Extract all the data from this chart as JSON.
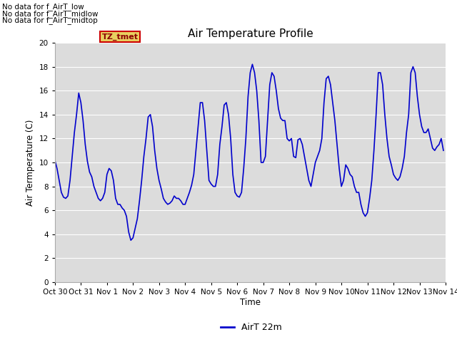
{
  "title": "Air Temperature Profile",
  "ylabel": "Air Termperature (C)",
  "xlabel": "Time",
  "legend_label": "AirT 22m",
  "line_color": "#0000cc",
  "plot_bg_color": "#dcdcdc",
  "fig_bg_color": "#ffffff",
  "ylim": [
    0,
    20
  ],
  "yticks": [
    0,
    2,
    4,
    6,
    8,
    10,
    12,
    14,
    16,
    18,
    20
  ],
  "no_data_texts": [
    "No data for f_AirT_low",
    "No data for f_AirT_midlow",
    "No data for f_AirT_midtop"
  ],
  "tz_label": "TZ_tmet",
  "x_start_day": 0,
  "x_end_day": 15.0,
  "xtick_labels": [
    "Oct 30",
    "Oct 31",
    "Nov 1",
    "Nov 2",
    "Nov 3",
    "Nov 4",
    "Nov 5",
    "Nov 6",
    "Nov 7",
    "Nov 8",
    "Nov 9",
    "Nov 10",
    "Nov 11",
    "Nov 12",
    "Nov 13",
    "Nov 14"
  ],
  "xtick_positions": [
    0,
    1,
    2,
    3,
    4,
    5,
    6,
    7,
    8,
    9,
    10,
    11,
    12,
    13,
    14,
    15
  ],
  "data_x": [
    0.0,
    0.083,
    0.167,
    0.25,
    0.333,
    0.417,
    0.5,
    0.583,
    0.667,
    0.75,
    0.833,
    0.917,
    1.0,
    1.083,
    1.167,
    1.25,
    1.333,
    1.417,
    1.5,
    1.583,
    1.667,
    1.75,
    1.833,
    1.917,
    2.0,
    2.083,
    2.167,
    2.25,
    2.333,
    2.417,
    2.5,
    2.583,
    2.667,
    2.75,
    2.833,
    2.917,
    3.0,
    3.083,
    3.167,
    3.25,
    3.333,
    3.417,
    3.5,
    3.583,
    3.667,
    3.75,
    3.833,
    3.917,
    4.0,
    4.083,
    4.167,
    4.25,
    4.333,
    4.417,
    4.5,
    4.583,
    4.667,
    4.75,
    4.833,
    4.917,
    5.0,
    5.083,
    5.167,
    5.25,
    5.333,
    5.417,
    5.5,
    5.583,
    5.667,
    5.75,
    5.833,
    5.917,
    6.0,
    6.083,
    6.167,
    6.25,
    6.333,
    6.417,
    6.5,
    6.583,
    6.667,
    6.75,
    6.833,
    6.917,
    7.0,
    7.083,
    7.167,
    7.25,
    7.333,
    7.417,
    7.5,
    7.583,
    7.667,
    7.75,
    7.833,
    7.917,
    8.0,
    8.083,
    8.167,
    8.25,
    8.333,
    8.417,
    8.5,
    8.583,
    8.667,
    8.75,
    8.833,
    8.917,
    9.0,
    9.083,
    9.167,
    9.25,
    9.333,
    9.417,
    9.5,
    9.583,
    9.667,
    9.75,
    9.833,
    9.917,
    10.0,
    10.083,
    10.167,
    10.25,
    10.333,
    10.417,
    10.5,
    10.583,
    10.667,
    10.75,
    10.833,
    10.917,
    11.0,
    11.083,
    11.167,
    11.25,
    11.333,
    11.417,
    11.5,
    11.583,
    11.667,
    11.75,
    11.833,
    11.917,
    12.0,
    12.083,
    12.167,
    12.25,
    12.333,
    12.417,
    12.5,
    12.583,
    12.667,
    12.75,
    12.833,
    12.917,
    13.0,
    13.083,
    13.167,
    13.25,
    13.333,
    13.417,
    13.5,
    13.583,
    13.667,
    13.75,
    13.833,
    13.917,
    14.0,
    14.083,
    14.167,
    14.25,
    14.333,
    14.417,
    14.5,
    14.583,
    14.667,
    14.75,
    14.833,
    14.917
  ],
  "data_y": [
    10.2,
    9.5,
    8.5,
    7.5,
    7.1,
    7.0,
    7.2,
    8.5,
    10.5,
    12.5,
    14.0,
    15.8,
    15.0,
    13.5,
    11.5,
    10.1,
    9.2,
    8.8,
    8.0,
    7.5,
    7.0,
    6.8,
    7.0,
    7.5,
    9.0,
    9.5,
    9.3,
    8.5,
    7.0,
    6.5,
    6.5,
    6.2,
    6.0,
    5.5,
    4.2,
    3.5,
    3.7,
    4.5,
    5.3,
    6.8,
    8.5,
    10.5,
    12.0,
    13.8,
    14.0,
    13.0,
    11.0,
    9.5,
    8.5,
    7.8,
    7.0,
    6.7,
    6.5,
    6.6,
    6.8,
    7.2,
    7.0,
    7.0,
    6.8,
    6.5,
    6.5,
    7.0,
    7.5,
    8.1,
    9.0,
    11.0,
    13.0,
    15.0,
    15.0,
    13.5,
    11.0,
    8.5,
    8.2,
    8.0,
    8.0,
    9.0,
    11.5,
    13.0,
    14.8,
    15.0,
    14.0,
    12.0,
    9.0,
    7.5,
    7.2,
    7.1,
    7.5,
    9.5,
    12.0,
    15.5,
    17.5,
    18.2,
    17.5,
    16.0,
    13.5,
    10.0,
    10.0,
    10.5,
    13.5,
    16.5,
    17.5,
    17.2,
    16.0,
    14.5,
    13.7,
    13.5,
    13.5,
    12.0,
    11.8,
    12.0,
    10.5,
    10.4,
    11.9,
    12.0,
    11.5,
    10.5,
    9.5,
    8.5,
    8.0,
    9.0,
    10.0,
    10.5,
    11.0,
    12.0,
    15.0,
    17.0,
    17.2,
    16.5,
    15.0,
    13.5,
    11.5,
    9.5,
    8.0,
    8.5,
    9.8,
    9.5,
    9.0,
    8.8,
    8.0,
    7.5,
    7.5,
    6.5,
    5.8,
    5.5,
    5.8,
    7.0,
    8.5,
    11.0,
    14.0,
    17.5,
    17.5,
    16.5,
    14.0,
    12.0,
    10.5,
    9.8,
    9.0,
    8.7,
    8.5,
    8.8,
    9.5,
    10.5,
    12.5,
    14.0,
    17.5,
    18.0,
    17.5,
    15.5,
    14.0,
    13.0,
    12.5,
    12.5,
    12.8,
    12.0,
    11.2,
    11.0,
    11.3,
    11.5,
    12.0,
    11.0
  ]
}
